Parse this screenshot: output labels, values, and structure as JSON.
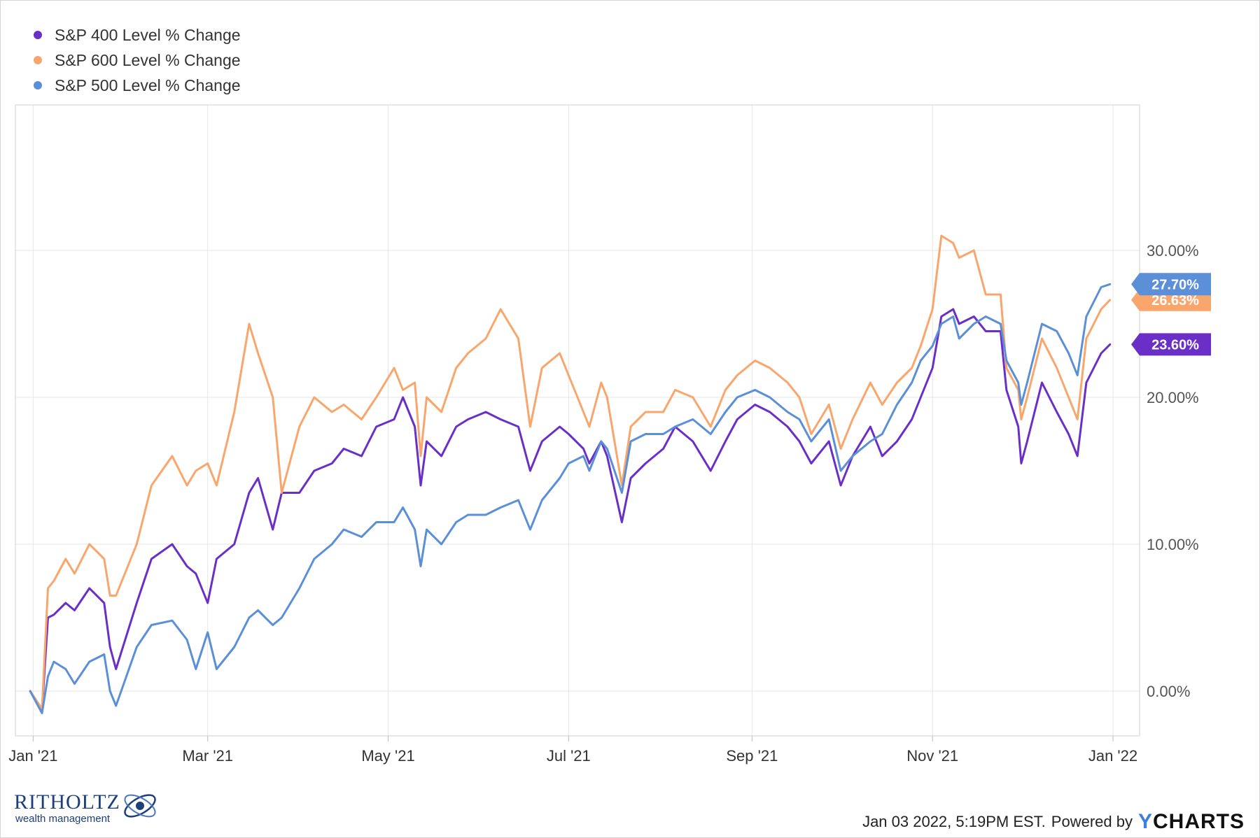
{
  "chart_data": {
    "type": "line",
    "xlabel": "",
    "ylabel": "",
    "x_ticks": [
      "Jan '21",
      "Mar '21",
      "May '21",
      "Jul '21",
      "Sep '21",
      "Nov '21",
      "Jan '22"
    ],
    "y_ticks": [
      "0.00%",
      "10.00%",
      "20.00%",
      "30.00%"
    ],
    "ylim": [
      -3,
      40
    ],
    "grid": true,
    "legend_position": "top-left",
    "series": [
      {
        "name": "S&P 400 Level % Change",
        "color": "#6a2fc6",
        "end_label": "23.60%",
        "points": [
          [
            "2020-12-31",
            0
          ],
          [
            "2021-01-04",
            -1.3
          ],
          [
            "2021-01-06",
            5
          ],
          [
            "2021-01-08",
            5.2
          ],
          [
            "2021-01-12",
            6
          ],
          [
            "2021-01-15",
            5.5
          ],
          [
            "2021-01-20",
            7
          ],
          [
            "2021-01-25",
            6
          ],
          [
            "2021-01-27",
            3
          ],
          [
            "2021-01-29",
            1.5
          ],
          [
            "2021-02-05",
            6
          ],
          [
            "2021-02-10",
            9
          ],
          [
            "2021-02-17",
            10
          ],
          [
            "2021-02-22",
            8.5
          ],
          [
            "2021-02-25",
            8
          ],
          [
            "2021-03-01",
            6
          ],
          [
            "2021-03-04",
            9
          ],
          [
            "2021-03-10",
            10
          ],
          [
            "2021-03-15",
            13.5
          ],
          [
            "2021-03-18",
            14.5
          ],
          [
            "2021-03-23",
            11
          ],
          [
            "2021-03-26",
            13.5
          ],
          [
            "2021-04-01",
            13.5
          ],
          [
            "2021-04-06",
            15
          ],
          [
            "2021-04-12",
            15.5
          ],
          [
            "2021-04-16",
            16.5
          ],
          [
            "2021-04-22",
            16
          ],
          [
            "2021-04-27",
            18
          ],
          [
            "2021-05-03",
            18.5
          ],
          [
            "2021-05-06",
            20
          ],
          [
            "2021-05-10",
            18
          ],
          [
            "2021-05-12",
            14
          ],
          [
            "2021-05-14",
            17
          ],
          [
            "2021-05-19",
            16
          ],
          [
            "2021-05-24",
            18
          ],
          [
            "2021-05-28",
            18.5
          ],
          [
            "2021-06-03",
            19
          ],
          [
            "2021-06-08",
            18.5
          ],
          [
            "2021-06-14",
            18
          ],
          [
            "2021-06-18",
            15
          ],
          [
            "2021-06-22",
            17
          ],
          [
            "2021-06-28",
            18
          ],
          [
            "2021-07-01",
            17.5
          ],
          [
            "2021-07-06",
            16.5
          ],
          [
            "2021-07-08",
            15.5
          ],
          [
            "2021-07-12",
            17
          ],
          [
            "2021-07-14",
            16
          ],
          [
            "2021-07-19",
            11.5
          ],
          [
            "2021-07-22",
            14.5
          ],
          [
            "2021-07-27",
            15.5
          ],
          [
            "2021-08-02",
            16.5
          ],
          [
            "2021-08-06",
            18
          ],
          [
            "2021-08-12",
            17
          ],
          [
            "2021-08-18",
            15
          ],
          [
            "2021-08-23",
            17
          ],
          [
            "2021-08-27",
            18.5
          ],
          [
            "2021-09-02",
            19.5
          ],
          [
            "2021-09-07",
            19
          ],
          [
            "2021-09-13",
            18
          ],
          [
            "2021-09-17",
            17
          ],
          [
            "2021-09-21",
            15.5
          ],
          [
            "2021-09-27",
            17
          ],
          [
            "2021-10-01",
            14
          ],
          [
            "2021-10-05",
            16
          ],
          [
            "2021-10-11",
            18
          ],
          [
            "2021-10-15",
            16
          ],
          [
            "2021-10-20",
            17
          ],
          [
            "2021-10-25",
            18.5
          ],
          [
            "2021-10-28",
            20
          ],
          [
            "2021-11-01",
            22
          ],
          [
            "2021-11-04",
            25.5
          ],
          [
            "2021-11-08",
            26
          ],
          [
            "2021-11-10",
            25
          ],
          [
            "2021-11-15",
            25.5
          ],
          [
            "2021-11-19",
            24.5
          ],
          [
            "2021-11-24",
            24.5
          ],
          [
            "2021-11-26",
            20.5
          ],
          [
            "2021-11-30",
            18
          ],
          [
            "2021-12-01",
            15.5
          ],
          [
            "2021-12-03",
            17
          ],
          [
            "2021-12-08",
            21
          ],
          [
            "2021-12-13",
            19
          ],
          [
            "2021-12-17",
            17.5
          ],
          [
            "2021-12-20",
            16
          ],
          [
            "2021-12-23",
            21
          ],
          [
            "2021-12-28",
            23
          ],
          [
            "2021-12-31",
            23.6
          ]
        ]
      },
      {
        "name": "S&P 600 Level % Change",
        "color": "#f9a66c",
        "end_label": "26.63%",
        "points": [
          [
            "2020-12-31",
            0
          ],
          [
            "2021-01-04",
            -1.2
          ],
          [
            "2021-01-06",
            7
          ],
          [
            "2021-01-08",
            7.5
          ],
          [
            "2021-01-12",
            9
          ],
          [
            "2021-01-15",
            8
          ],
          [
            "2021-01-20",
            10
          ],
          [
            "2021-01-25",
            9
          ],
          [
            "2021-01-27",
            6.5
          ],
          [
            "2021-01-29",
            6.5
          ],
          [
            "2021-02-05",
            10
          ],
          [
            "2021-02-10",
            14
          ],
          [
            "2021-02-17",
            16
          ],
          [
            "2021-02-22",
            14
          ],
          [
            "2021-02-25",
            15
          ],
          [
            "2021-03-01",
            15.5
          ],
          [
            "2021-03-04",
            14
          ],
          [
            "2021-03-10",
            19
          ],
          [
            "2021-03-15",
            25
          ],
          [
            "2021-03-18",
            23
          ],
          [
            "2021-03-23",
            20
          ],
          [
            "2021-03-26",
            13.5
          ],
          [
            "2021-04-01",
            18
          ],
          [
            "2021-04-06",
            20
          ],
          [
            "2021-04-12",
            19
          ],
          [
            "2021-04-16",
            19.5
          ],
          [
            "2021-04-22",
            18.5
          ],
          [
            "2021-04-27",
            20
          ],
          [
            "2021-05-03",
            22
          ],
          [
            "2021-05-06",
            20.5
          ],
          [
            "2021-05-10",
            21
          ],
          [
            "2021-05-12",
            16
          ],
          [
            "2021-05-14",
            20
          ],
          [
            "2021-05-19",
            19
          ],
          [
            "2021-05-24",
            22
          ],
          [
            "2021-05-28",
            23
          ],
          [
            "2021-06-03",
            24
          ],
          [
            "2021-06-08",
            26
          ],
          [
            "2021-06-14",
            24
          ],
          [
            "2021-06-18",
            18
          ],
          [
            "2021-06-22",
            22
          ],
          [
            "2021-06-28",
            23
          ],
          [
            "2021-07-01",
            21.5
          ],
          [
            "2021-07-06",
            19
          ],
          [
            "2021-07-08",
            18
          ],
          [
            "2021-07-12",
            21
          ],
          [
            "2021-07-14",
            20
          ],
          [
            "2021-07-19",
            14
          ],
          [
            "2021-07-22",
            18
          ],
          [
            "2021-07-27",
            19
          ],
          [
            "2021-08-02",
            19
          ],
          [
            "2021-08-06",
            20.5
          ],
          [
            "2021-08-12",
            20
          ],
          [
            "2021-08-18",
            18
          ],
          [
            "2021-08-23",
            20.5
          ],
          [
            "2021-08-27",
            21.5
          ],
          [
            "2021-09-02",
            22.5
          ],
          [
            "2021-09-07",
            22
          ],
          [
            "2021-09-13",
            21
          ],
          [
            "2021-09-17",
            20
          ],
          [
            "2021-09-21",
            17.5
          ],
          [
            "2021-09-27",
            19.5
          ],
          [
            "2021-10-01",
            16.5
          ],
          [
            "2021-10-05",
            18.5
          ],
          [
            "2021-10-11",
            21
          ],
          [
            "2021-10-15",
            19.5
          ],
          [
            "2021-10-20",
            21
          ],
          [
            "2021-10-25",
            22
          ],
          [
            "2021-10-28",
            23.5
          ],
          [
            "2021-11-01",
            26
          ],
          [
            "2021-11-04",
            31
          ],
          [
            "2021-11-08",
            30.5
          ],
          [
            "2021-11-10",
            29.5
          ],
          [
            "2021-11-15",
            30
          ],
          [
            "2021-11-19",
            27
          ],
          [
            "2021-11-24",
            27
          ],
          [
            "2021-11-26",
            22
          ],
          [
            "2021-11-30",
            20.5
          ],
          [
            "2021-12-01",
            18.5
          ],
          [
            "2021-12-03",
            20
          ],
          [
            "2021-12-08",
            24
          ],
          [
            "2021-12-13",
            22
          ],
          [
            "2021-12-17",
            20
          ],
          [
            "2021-12-20",
            18.5
          ],
          [
            "2021-12-23",
            24
          ],
          [
            "2021-12-28",
            26
          ],
          [
            "2021-12-31",
            26.63
          ]
        ]
      },
      {
        "name": "S&P 500 Level % Change",
        "color": "#5b8fd8",
        "end_label": "27.70%",
        "points": [
          [
            "2020-12-31",
            0
          ],
          [
            "2021-01-04",
            -1.5
          ],
          [
            "2021-01-06",
            1
          ],
          [
            "2021-01-08",
            2
          ],
          [
            "2021-01-12",
            1.5
          ],
          [
            "2021-01-15",
            0.5
          ],
          [
            "2021-01-20",
            2
          ],
          [
            "2021-01-25",
            2.5
          ],
          [
            "2021-01-27",
            0
          ],
          [
            "2021-01-29",
            -1
          ],
          [
            "2021-02-05",
            3
          ],
          [
            "2021-02-10",
            4.5
          ],
          [
            "2021-02-17",
            4.8
          ],
          [
            "2021-02-22",
            3.5
          ],
          [
            "2021-02-25",
            1.5
          ],
          [
            "2021-03-01",
            4
          ],
          [
            "2021-03-04",
            1.5
          ],
          [
            "2021-03-10",
            3
          ],
          [
            "2021-03-15",
            5
          ],
          [
            "2021-03-18",
            5.5
          ],
          [
            "2021-03-23",
            4.5
          ],
          [
            "2021-03-26",
            5
          ],
          [
            "2021-04-01",
            7
          ],
          [
            "2021-04-06",
            9
          ],
          [
            "2021-04-12",
            10
          ],
          [
            "2021-04-16",
            11
          ],
          [
            "2021-04-22",
            10.5
          ],
          [
            "2021-04-27",
            11.5
          ],
          [
            "2021-05-03",
            11.5
          ],
          [
            "2021-05-06",
            12.5
          ],
          [
            "2021-05-10",
            11
          ],
          [
            "2021-05-12",
            8.5
          ],
          [
            "2021-05-14",
            11
          ],
          [
            "2021-05-19",
            10
          ],
          [
            "2021-05-24",
            11.5
          ],
          [
            "2021-05-28",
            12
          ],
          [
            "2021-06-03",
            12
          ],
          [
            "2021-06-08",
            12.5
          ],
          [
            "2021-06-14",
            13
          ],
          [
            "2021-06-18",
            11
          ],
          [
            "2021-06-22",
            13
          ],
          [
            "2021-06-28",
            14.5
          ],
          [
            "2021-07-01",
            15.5
          ],
          [
            "2021-07-06",
            16
          ],
          [
            "2021-07-08",
            15
          ],
          [
            "2021-07-12",
            17
          ],
          [
            "2021-07-14",
            16.5
          ],
          [
            "2021-07-19",
            13.5
          ],
          [
            "2021-07-22",
            17
          ],
          [
            "2021-07-27",
            17.5
          ],
          [
            "2021-08-02",
            17.5
          ],
          [
            "2021-08-06",
            18
          ],
          [
            "2021-08-12",
            18.5
          ],
          [
            "2021-08-18",
            17.5
          ],
          [
            "2021-08-23",
            19
          ],
          [
            "2021-08-27",
            20
          ],
          [
            "2021-09-02",
            20.5
          ],
          [
            "2021-09-07",
            20
          ],
          [
            "2021-09-13",
            19
          ],
          [
            "2021-09-17",
            18.5
          ],
          [
            "2021-09-21",
            17
          ],
          [
            "2021-09-27",
            18.5
          ],
          [
            "2021-10-01",
            15
          ],
          [
            "2021-10-05",
            16
          ],
          [
            "2021-10-11",
            17
          ],
          [
            "2021-10-15",
            17.5
          ],
          [
            "2021-10-20",
            19.5
          ],
          [
            "2021-10-25",
            21
          ],
          [
            "2021-10-28",
            22.5
          ],
          [
            "2021-11-01",
            23.5
          ],
          [
            "2021-11-04",
            25
          ],
          [
            "2021-11-08",
            25.5
          ],
          [
            "2021-11-10",
            24
          ],
          [
            "2021-11-15",
            25
          ],
          [
            "2021-11-19",
            25.5
          ],
          [
            "2021-11-24",
            25
          ],
          [
            "2021-11-26",
            22.5
          ],
          [
            "2021-11-30",
            21
          ],
          [
            "2021-12-01",
            19.5
          ],
          [
            "2021-12-03",
            21
          ],
          [
            "2021-12-08",
            25
          ],
          [
            "2021-12-13",
            24.5
          ],
          [
            "2021-12-17",
            23
          ],
          [
            "2021-12-20",
            21.5
          ],
          [
            "2021-12-23",
            25.5
          ],
          [
            "2021-12-28",
            27.5
          ],
          [
            "2021-12-31",
            27.7
          ]
        ]
      }
    ]
  },
  "footer": {
    "logo_text": "RITHOLTZ",
    "logo_subtext": "wealth management",
    "timestamp": "Jan 03 2022, 5:19PM EST.",
    "powered_by": "Powered by",
    "brand_y": "Y",
    "brand_rest": "CHARTS"
  }
}
